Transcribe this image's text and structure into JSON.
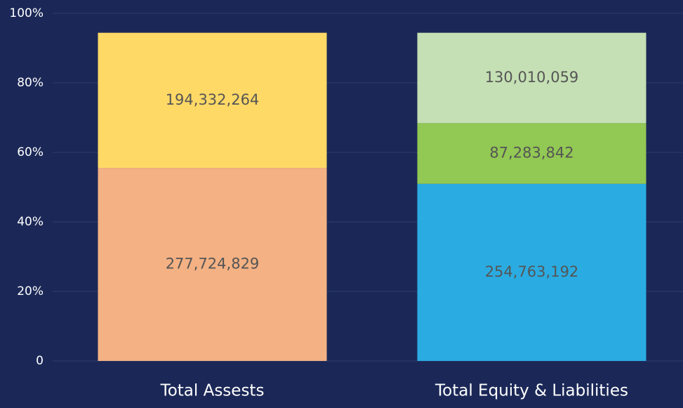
{
  "chart_data": {
    "type": "stacked_bar",
    "categories": [
      "Total Assests",
      "Total Equity & Liabilities"
    ],
    "series": [
      {
        "color": "#f4b183",
        "values": [
          277724829,
          null
        ],
        "value_labels": [
          "277,724,829",
          null
        ]
      },
      {
        "color": "#ffd966",
        "values": [
          194332264,
          null
        ],
        "value_labels": [
          "194,332,264",
          null
        ]
      },
      {
        "color": "#2aace2",
        "values": [
          null,
          254763192
        ],
        "value_labels": [
          null,
          "254,763,192"
        ]
      },
      {
        "color": "#92c854",
        "values": [
          null,
          87283842
        ],
        "value_labels": [
          null,
          "87,283,842"
        ]
      },
      {
        "color": "#c5e0b4",
        "values": [
          null,
          130010059
        ],
        "value_labels": [
          null,
          "130,010,059"
        ]
      }
    ],
    "ylim": [
      0,
      500000000
    ],
    "yticks": [
      0,
      {
        "value": 100000000,
        "label": "20%"
      },
      {
        "value": 200000000,
        "label": "40%"
      },
      {
        "value": 300000000,
        "label": "60%"
      },
      {
        "value": 400000000,
        "label": "80%"
      },
      {
        "value": 500000000,
        "label": "100%"
      }
    ],
    "grid": true
  }
}
